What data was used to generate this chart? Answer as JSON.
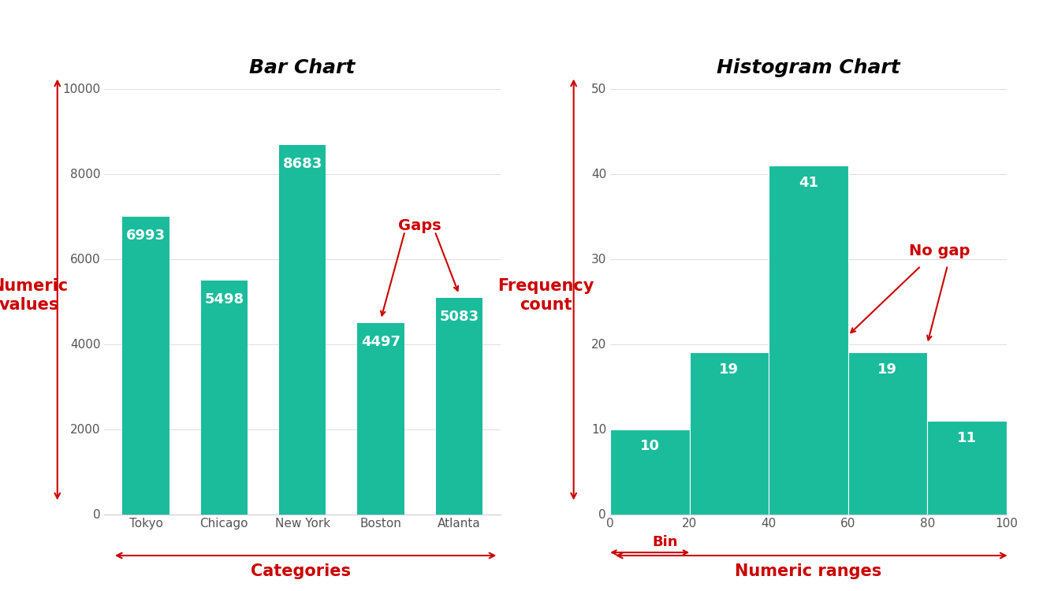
{
  "bar_categories": [
    "Tokyo",
    "Chicago",
    "New York",
    "Boston",
    "Atlanta"
  ],
  "bar_values": [
    6993,
    5498,
    8683,
    4497,
    5083
  ],
  "bar_color": "#1ABC9C",
  "bar_title": "Bar Chart",
  "bar_ylabel": "Numeric\nvalues",
  "bar_xlabel": "Categories",
  "bar_ylim": [
    0,
    10000
  ],
  "bar_yticks": [
    0,
    2000,
    4000,
    6000,
    8000,
    10000
  ],
  "bar_gaps_label": "Gaps",
  "hist_values": [
    10,
    19,
    41,
    19,
    11
  ],
  "hist_bins": [
    0,
    20,
    40,
    60,
    80,
    100
  ],
  "hist_color": "#1ABC9C",
  "hist_title": "Histogram Chart",
  "hist_ylabel": "Frequency\ncount",
  "hist_xlabel": "Numeric ranges",
  "hist_ylim": [
    0,
    50
  ],
  "hist_yticks": [
    0,
    10,
    20,
    30,
    40,
    50
  ],
  "hist_nogap_label": "No gap",
  "hist_bin_label": "Bin",
  "annotation_color": "#CC0000",
  "label_color_red": "#CC0000",
  "bar_label_color": "#ffffff",
  "background_color": "#ffffff",
  "title_fontsize": 18,
  "axis_label_fontsize": 15,
  "bar_value_fontsize": 13,
  "annotation_fontsize": 14
}
